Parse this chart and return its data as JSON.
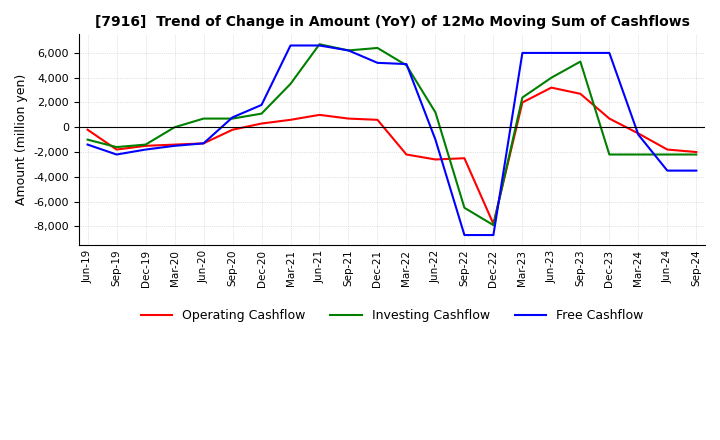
{
  "title": "[7916]  Trend of Change in Amount (YoY) of 12Mo Moving Sum of Cashflows",
  "ylabel": "Amount (million yen)",
  "x_labels": [
    "Jun-19",
    "Sep-19",
    "Dec-19",
    "Mar-20",
    "Jun-20",
    "Sep-20",
    "Dec-20",
    "Mar-21",
    "Jun-21",
    "Sep-21",
    "Dec-21",
    "Mar-22",
    "Jun-22",
    "Sep-22",
    "Dec-22",
    "Mar-23",
    "Jun-23",
    "Sep-23",
    "Dec-23",
    "Mar-24",
    "Jun-24",
    "Sep-24"
  ],
  "operating": [
    -200,
    -1800,
    -1500,
    -1400,
    -1300,
    -200,
    300,
    600,
    1000,
    700,
    600,
    -2200,
    -2600,
    -2500,
    -7800,
    2000,
    3200,
    2700,
    700,
    -500,
    -1800,
    -2000
  ],
  "investing": [
    -1000,
    -1600,
    -1400,
    0,
    700,
    700,
    1100,
    3500,
    6700,
    6200,
    6400,
    5000,
    1200,
    -6500,
    -7900,
    2400,
    4000,
    5300,
    -2200,
    -2200,
    -2200,
    -2200
  ],
  "free": [
    -1400,
    -2200,
    -1800,
    -1500,
    -1300,
    800,
    1800,
    6600,
    6600,
    6200,
    5200,
    5100,
    -1000,
    -8700,
    -8700,
    6000,
    6000,
    6000,
    6000,
    -600,
    -3500,
    -3500
  ],
  "ylim": [
    -9500,
    7500
  ],
  "yticks": [
    -8000,
    -6000,
    -4000,
    -2000,
    0,
    2000,
    4000,
    6000
  ],
  "colors": {
    "operating": "#ff0000",
    "investing": "#008000",
    "free": "#0000ff"
  },
  "legend_labels": [
    "Operating Cashflow",
    "Investing Cashflow",
    "Free Cashflow"
  ],
  "background_color": "#ffffff",
  "grid_color": "#c8c8c8"
}
